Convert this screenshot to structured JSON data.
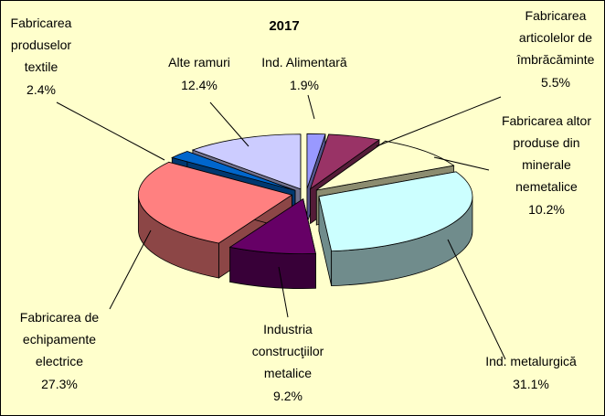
{
  "chart_data": {
    "type": "pie",
    "title": "2017",
    "categories": [
      "Ind. Alimentară",
      "Fabricarea articolelor de îmbrăcăminte",
      "Fabricarea altor produse din minerale nemetalice",
      "Ind. metalurgică",
      "Industria construcţiilor metalice",
      "Fabricarea de echipamente electrice",
      "Fabricarea produselor textile",
      "Alte ramuri"
    ],
    "values": [
      1.9,
      5.5,
      10.2,
      31.1,
      9.2,
      27.3,
      2.4,
      12.4
    ],
    "value_labels": [
      "1.9%",
      "5.5%",
      "10.2%",
      "31.1%",
      "9.2%",
      "27.3%",
      "2.4%",
      "12.4%"
    ],
    "colors": [
      "#9999ff",
      "#993366",
      "#ffffcc",
      "#ccffff",
      "#660066",
      "#ff8080",
      "#0066cc",
      "#ccccff"
    ]
  }
}
